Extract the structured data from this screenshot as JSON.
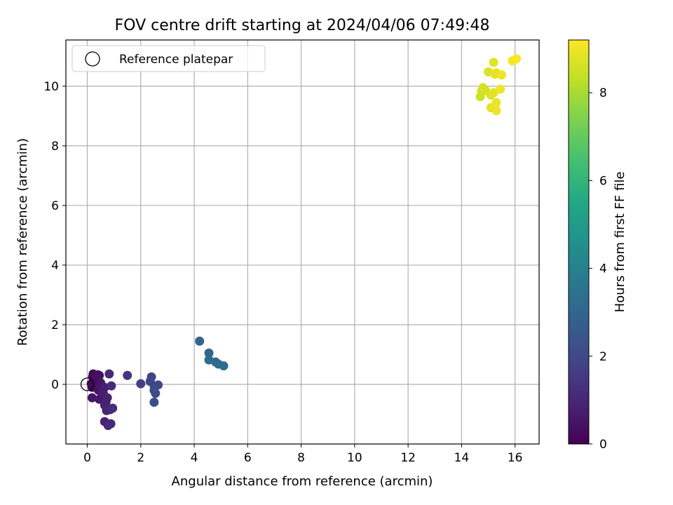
{
  "chart_data": {
    "type": "scatter",
    "title": "FOV centre drift starting at 2024/04/06 07:49:48",
    "xlabel": "Angular distance from reference (arcmin)",
    "ylabel": "Rotation from reference (arcmin)",
    "xlim": [
      -0.8,
      16.9
    ],
    "ylim": [
      -2.0,
      11.55
    ],
    "xticks": [
      0,
      2,
      4,
      6,
      8,
      10,
      12,
      14,
      16
    ],
    "yticks": [
      0,
      2,
      4,
      6,
      8,
      10
    ],
    "grid": true,
    "legend": {
      "position": "top-left",
      "entries": [
        "Reference platepar"
      ]
    },
    "reference_point": {
      "x": 0,
      "y": 0
    },
    "colorbar": {
      "label": "Hours from first FF file",
      "colormap": "viridis",
      "range": [
        0,
        9.2
      ],
      "ticks": [
        0,
        2,
        4,
        6,
        8
      ]
    },
    "points": [
      {
        "x": 0.15,
        "y": 0.02,
        "h": 0.05
      },
      {
        "x": 0.2,
        "y": 0.25,
        "h": 0.1
      },
      {
        "x": 0.18,
        "y": -0.1,
        "h": 0.15
      },
      {
        "x": 0.22,
        "y": 0.35,
        "h": 0.2
      },
      {
        "x": 0.3,
        "y": 0.28,
        "h": 0.25
      },
      {
        "x": 0.35,
        "y": 0.1,
        "h": 0.3
      },
      {
        "x": 0.4,
        "y": 0.32,
        "h": 0.35
      },
      {
        "x": 0.45,
        "y": 0.3,
        "h": 0.4
      },
      {
        "x": 0.42,
        "y": -0.2,
        "h": 0.45
      },
      {
        "x": 0.5,
        "y": 0.05,
        "h": 0.5
      },
      {
        "x": 0.18,
        "y": -0.45,
        "h": 0.55
      },
      {
        "x": 0.45,
        "y": -0.5,
        "h": 0.6
      },
      {
        "x": 0.55,
        "y": -0.25,
        "h": 0.65
      },
      {
        "x": 0.6,
        "y": -0.3,
        "h": 0.7
      },
      {
        "x": 0.65,
        "y": -0.1,
        "h": 0.75
      },
      {
        "x": 0.7,
        "y": -0.6,
        "h": 0.8
      },
      {
        "x": 0.75,
        "y": -0.45,
        "h": 0.85
      },
      {
        "x": 0.65,
        "y": -0.7,
        "h": 0.9
      },
      {
        "x": 0.72,
        "y": -0.88,
        "h": 0.95
      },
      {
        "x": 0.85,
        "y": -0.85,
        "h": 1.0
      },
      {
        "x": 0.82,
        "y": 0.35,
        "h": 1.05
      },
      {
        "x": 0.9,
        "y": -0.05,
        "h": 1.1
      },
      {
        "x": 0.95,
        "y": -0.8,
        "h": 1.15
      },
      {
        "x": 0.65,
        "y": -1.25,
        "h": 0.9
      },
      {
        "x": 0.78,
        "y": -1.38,
        "h": 1.0
      },
      {
        "x": 0.88,
        "y": -1.32,
        "h": 1.1
      },
      {
        "x": 1.5,
        "y": 0.3,
        "h": 1.45
      },
      {
        "x": 2.0,
        "y": 0.02,
        "h": 1.75
      },
      {
        "x": 2.4,
        "y": 0.25,
        "h": 1.85
      },
      {
        "x": 2.35,
        "y": 0.1,
        "h": 1.9
      },
      {
        "x": 2.5,
        "y": -0.05,
        "h": 1.95
      },
      {
        "x": 2.65,
        "y": -0.02,
        "h": 2.0
      },
      {
        "x": 2.55,
        "y": -0.3,
        "h": 2.05
      },
      {
        "x": 2.5,
        "y": -0.2,
        "h": 2.1
      },
      {
        "x": 2.5,
        "y": -0.6,
        "h": 2.1
      },
      {
        "x": 4.2,
        "y": 1.45,
        "h": 3.0
      },
      {
        "x": 4.55,
        "y": 1.05,
        "h": 3.1
      },
      {
        "x": 4.55,
        "y": 0.82,
        "h": 3.15
      },
      {
        "x": 4.8,
        "y": 0.75,
        "h": 3.2
      },
      {
        "x": 4.9,
        "y": 0.68,
        "h": 3.25
      },
      {
        "x": 5.1,
        "y": 0.62,
        "h": 3.3
      },
      {
        "x": 14.7,
        "y": 9.65,
        "h": 8.5
      },
      {
        "x": 14.75,
        "y": 9.85,
        "h": 8.55
      },
      {
        "x": 14.8,
        "y": 9.95,
        "h": 8.6
      },
      {
        "x": 14.9,
        "y": 9.85,
        "h": 8.6
      },
      {
        "x": 15.0,
        "y": 10.48,
        "h": 8.7
      },
      {
        "x": 15.1,
        "y": 9.7,
        "h": 8.75
      },
      {
        "x": 15.2,
        "y": 9.78,
        "h": 8.8
      },
      {
        "x": 15.2,
        "y": 10.8,
        "h": 8.8
      },
      {
        "x": 15.1,
        "y": 9.28,
        "h": 8.85
      },
      {
        "x": 15.25,
        "y": 10.4,
        "h": 8.9
      },
      {
        "x": 15.3,
        "y": 10.45,
        "h": 8.9
      },
      {
        "x": 15.3,
        "y": 9.45,
        "h": 8.95
      },
      {
        "x": 15.3,
        "y": 9.18,
        "h": 8.95
      },
      {
        "x": 15.45,
        "y": 9.9,
        "h": 9.0
      },
      {
        "x": 15.5,
        "y": 10.38,
        "h": 9.0
      },
      {
        "x": 15.9,
        "y": 10.85,
        "h": 9.1
      },
      {
        "x": 16.05,
        "y": 10.92,
        "h": 9.15
      }
    ]
  }
}
